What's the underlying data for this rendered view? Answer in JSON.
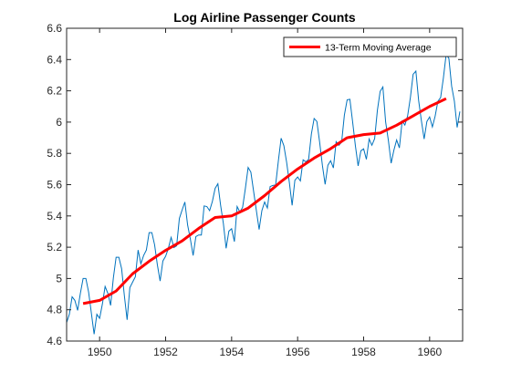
{
  "chart_data": {
    "type": "line",
    "title": "Log Airline Passenger Counts",
    "xlabel": "",
    "ylabel": "",
    "xlim": [
      1949,
      1961
    ],
    "ylim": [
      4.6,
      6.6
    ],
    "xticks": [
      1950,
      1952,
      1954,
      1956,
      1958,
      1960
    ],
    "yticks": [
      4.6,
      4.8,
      5,
      5.2,
      5.4,
      5.6,
      5.8,
      6,
      6.2,
      6.4,
      6.6
    ],
    "grid": false,
    "legend_position": "top-right",
    "series": [
      {
        "name": "",
        "color": "#0072BD",
        "x_start": 1949,
        "x_step_years": 0.0833333,
        "values": [
          4.718,
          4.771,
          4.883,
          4.86,
          4.796,
          4.905,
          5.0,
          5.0,
          4.913,
          4.779,
          4.644,
          4.771,
          4.745,
          4.836,
          4.949,
          4.905,
          4.828,
          5.004,
          5.136,
          5.136,
          5.063,
          4.89,
          4.736,
          4.942,
          4.977,
          5.011,
          5.182,
          5.094,
          5.147,
          5.182,
          5.293,
          5.293,
          5.215,
          5.087,
          4.984,
          5.112,
          5.142,
          5.193,
          5.263,
          5.198,
          5.209,
          5.384,
          5.438,
          5.489,
          5.342,
          5.252,
          5.147,
          5.268,
          5.278,
          5.278,
          5.464,
          5.46,
          5.434,
          5.493,
          5.576,
          5.606,
          5.468,
          5.352,
          5.193,
          5.303,
          5.318,
          5.236,
          5.46,
          5.425,
          5.455,
          5.576,
          5.71,
          5.68,
          5.557,
          5.434,
          5.313,
          5.434,
          5.489,
          5.451,
          5.588,
          5.595,
          5.598,
          5.753,
          5.897,
          5.849,
          5.743,
          5.613,
          5.468,
          5.628,
          5.649,
          5.624,
          5.759,
          5.746,
          5.762,
          5.924,
          6.023,
          6.004,
          5.872,
          5.724,
          5.602,
          5.724,
          5.753,
          5.707,
          5.875,
          5.852,
          5.872,
          6.045,
          6.142,
          6.146,
          6.001,
          5.849,
          5.72,
          5.817,
          5.829,
          5.762,
          5.892,
          5.852,
          5.894,
          6.075,
          6.196,
          6.225,
          6.001,
          5.883,
          5.737,
          5.82,
          5.886,
          5.835,
          6.006,
          5.981,
          6.04,
          6.157,
          6.306,
          6.326,
          6.138,
          6.009,
          5.892,
          6.004,
          6.033,
          5.969,
          6.038,
          6.133,
          6.157,
          6.282,
          6.433,
          6.407,
          6.23,
          6.133,
          5.966,
          6.068
        ]
      },
      {
        "name": "13-Term Moving Average",
        "color": "#ff0000",
        "points": [
          [
            1949.5,
            4.84
          ],
          [
            1950.0,
            4.86
          ],
          [
            1950.5,
            4.92
          ],
          [
            1951.0,
            5.03
          ],
          [
            1951.5,
            5.11
          ],
          [
            1952.0,
            5.18
          ],
          [
            1952.5,
            5.24
          ],
          [
            1953.0,
            5.32
          ],
          [
            1953.5,
            5.39
          ],
          [
            1954.0,
            5.4
          ],
          [
            1954.5,
            5.45
          ],
          [
            1955.0,
            5.53
          ],
          [
            1955.5,
            5.62
          ],
          [
            1956.0,
            5.7
          ],
          [
            1956.5,
            5.77
          ],
          [
            1957.0,
            5.83
          ],
          [
            1957.5,
            5.9
          ],
          [
            1958.0,
            5.92
          ],
          [
            1958.5,
            5.93
          ],
          [
            1959.0,
            5.98
          ],
          [
            1959.5,
            6.04
          ],
          [
            1960.0,
            6.1
          ],
          [
            1960.5,
            6.15
          ]
        ]
      }
    ]
  }
}
